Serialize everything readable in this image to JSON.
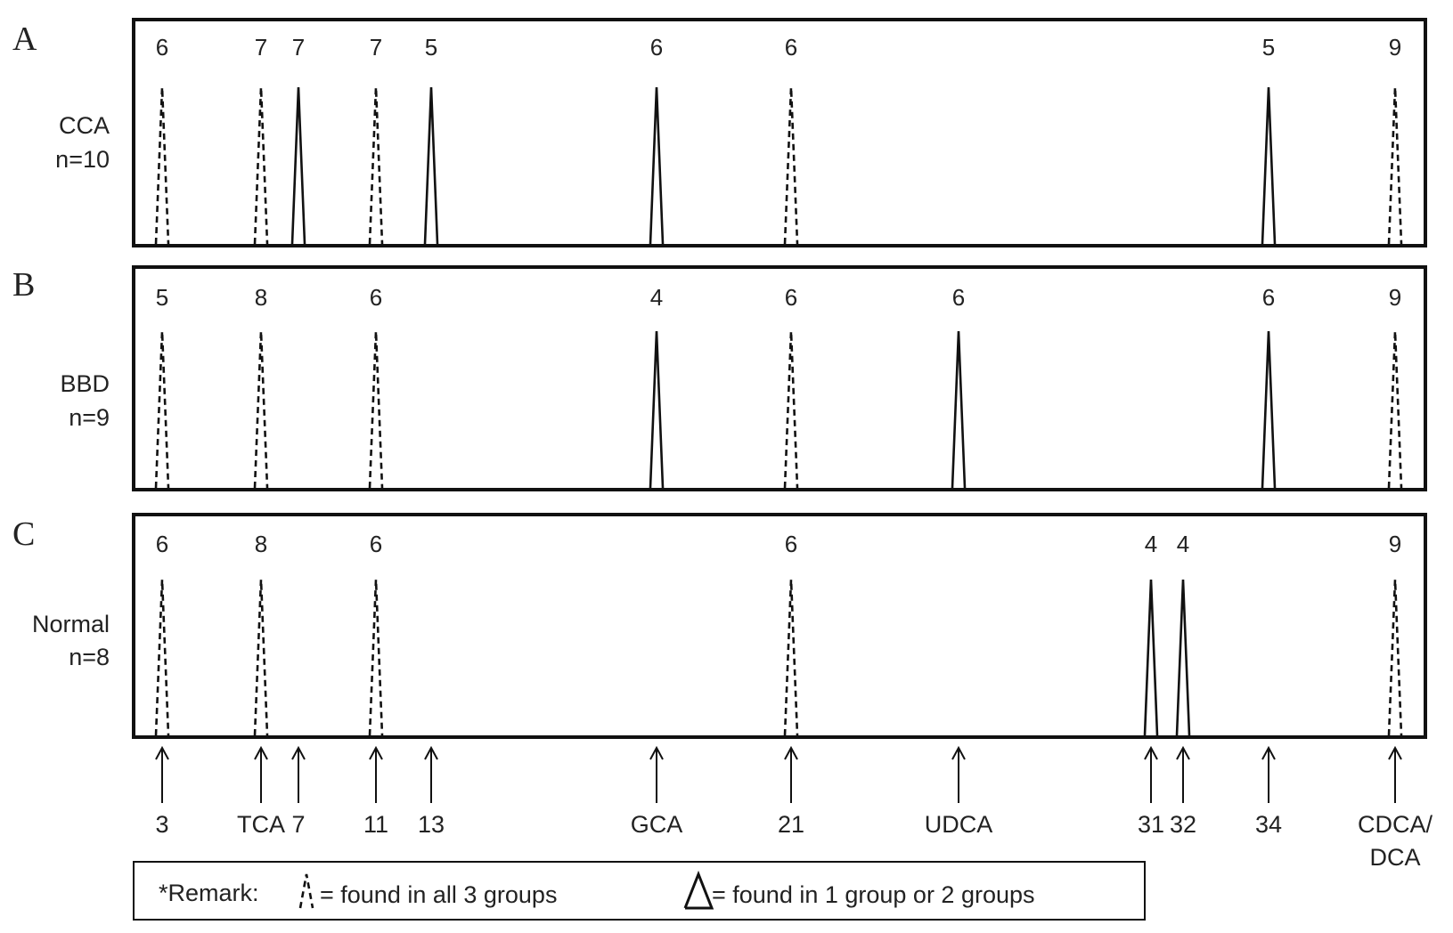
{
  "panels": [
    {
      "letter": "A",
      "group": "CCA",
      "n": "n=10",
      "peaks": [
        {
          "pos": "3",
          "count": "6",
          "style": "dashed"
        },
        {
          "pos": "TCA",
          "count": "7",
          "style": "dashed"
        },
        {
          "pos": "7",
          "count": "7",
          "style": "solid"
        },
        {
          "pos": "11",
          "count": "7",
          "style": "dashed"
        },
        {
          "pos": "13",
          "count": "5",
          "style": "solid"
        },
        {
          "pos": "GCA",
          "count": "6",
          "style": "solid"
        },
        {
          "pos": "21",
          "count": "6",
          "style": "dashed"
        },
        {
          "pos": "34",
          "count": "5",
          "style": "solid"
        },
        {
          "pos": "CDCA/DCA",
          "count": "9",
          "style": "dashed"
        }
      ]
    },
    {
      "letter": "B",
      "group": "BBD",
      "n": "n=9",
      "peaks": [
        {
          "pos": "3",
          "count": "5",
          "style": "dashed"
        },
        {
          "pos": "TCA",
          "count": "8",
          "style": "dashed"
        },
        {
          "pos": "11",
          "count": "6",
          "style": "dashed"
        },
        {
          "pos": "GCA",
          "count": "4",
          "style": "solid"
        },
        {
          "pos": "21",
          "count": "6",
          "style": "dashed"
        },
        {
          "pos": "UDCA",
          "count": "6",
          "style": "solid"
        },
        {
          "pos": "34",
          "count": "6",
          "style": "solid"
        },
        {
          "pos": "CDCA/DCA",
          "count": "9",
          "style": "dashed"
        }
      ]
    },
    {
      "letter": "C",
      "group": "Normal",
      "n": "n=8",
      "peaks": [
        {
          "pos": "3",
          "count": "6",
          "style": "dashed"
        },
        {
          "pos": "TCA",
          "count": "8",
          "style": "dashed"
        },
        {
          "pos": "11",
          "count": "6",
          "style": "dashed"
        },
        {
          "pos": "21",
          "count": "6",
          "style": "dashed"
        },
        {
          "pos": "31",
          "count": "4",
          "style": "solid"
        },
        {
          "pos": "32",
          "count": "4",
          "style": "solid"
        },
        {
          "pos": "CDCA/DCA",
          "count": "9",
          "style": "dashed"
        }
      ]
    }
  ],
  "markers": [
    {
      "id": "3",
      "label": [
        "3"
      ]
    },
    {
      "id": "TCA",
      "label": [
        "TCA"
      ]
    },
    {
      "id": "7",
      "label": [
        "7"
      ]
    },
    {
      "id": "11",
      "label": [
        "11"
      ]
    },
    {
      "id": "13",
      "label": [
        "13"
      ]
    },
    {
      "id": "GCA",
      "label": [
        "GCA"
      ]
    },
    {
      "id": "21",
      "label": [
        "21"
      ]
    },
    {
      "id": "UDCA",
      "label": [
        "UDCA"
      ]
    },
    {
      "id": "31",
      "label": [
        "31"
      ]
    },
    {
      "id": "32",
      "label": [
        "32"
      ]
    },
    {
      "id": "34",
      "label": [
        "34"
      ]
    },
    {
      "id": "CDCA/DCA",
      "label": [
        "CDCA/",
        "DCA"
      ]
    }
  ],
  "legend": {
    "remark": "*Remark:",
    "dashed_text": "= found in all 3 groups",
    "solid_text": "= found in 1 group or 2 groups"
  },
  "colors": {
    "line": "#111111",
    "text": "#222222",
    "background": "#ffffff"
  }
}
